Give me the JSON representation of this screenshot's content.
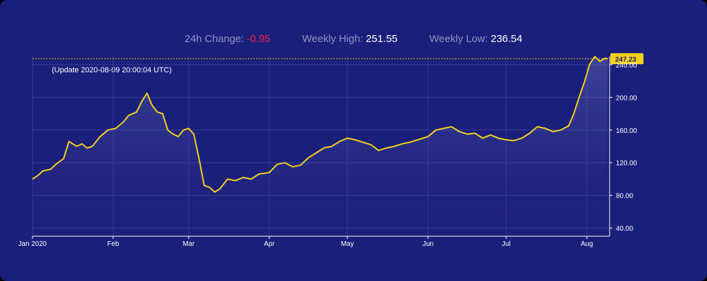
{
  "stats": {
    "change_label": "24h Change:",
    "change_value": "-0.95",
    "high_label": "Weekly High:",
    "high_value": "251.55",
    "low_label": "Weekly Low:",
    "low_value": "236.54"
  },
  "update_text": "(Update 2020-08-09 20:00:04 UTC)",
  "colors": {
    "background": "#1b1f7c",
    "line": "#f5d21a",
    "negative": "#f0263c"
  },
  "chart_data": {
    "type": "area",
    "x_tick_labels": [
      "Jan 2020",
      "Feb",
      "Mar",
      "Apr",
      "May",
      "Jun",
      "Jul",
      "Aug"
    ],
    "y_tick_labels": [
      "40.00",
      "80.00",
      "120.00",
      "160.00",
      "200.00",
      "240.00"
    ],
    "ylim": [
      30,
      250
    ],
    "current_price": 247.23,
    "current_price_label": "247.23",
    "grid": true,
    "x": [
      "2020-01-01",
      "2020-01-03",
      "2020-01-05",
      "2020-01-08",
      "2020-01-10",
      "2020-01-13",
      "2020-01-15",
      "2020-01-18",
      "2020-01-20",
      "2020-01-22",
      "2020-01-24",
      "2020-01-27",
      "2020-01-30",
      "2020-02-02",
      "2020-02-05",
      "2020-02-07",
      "2020-02-10",
      "2020-02-12",
      "2020-02-14",
      "2020-02-16",
      "2020-02-18",
      "2020-02-20",
      "2020-02-22",
      "2020-02-24",
      "2020-02-26",
      "2020-02-28",
      "2020-03-01",
      "2020-03-03",
      "2020-03-05",
      "2020-03-07",
      "2020-03-09",
      "2020-03-11",
      "2020-03-13",
      "2020-03-16",
      "2020-03-19",
      "2020-03-22",
      "2020-03-25",
      "2020-03-28",
      "2020-04-01",
      "2020-04-04",
      "2020-04-07",
      "2020-04-10",
      "2020-04-13",
      "2020-04-16",
      "2020-04-19",
      "2020-04-22",
      "2020-04-25",
      "2020-04-28",
      "2020-05-01",
      "2020-05-04",
      "2020-05-07",
      "2020-05-10",
      "2020-05-13",
      "2020-05-16",
      "2020-05-19",
      "2020-05-22",
      "2020-05-25",
      "2020-05-28",
      "2020-06-01",
      "2020-06-04",
      "2020-06-07",
      "2020-06-10",
      "2020-06-13",
      "2020-06-16",
      "2020-06-19",
      "2020-06-22",
      "2020-06-25",
      "2020-06-28",
      "2020-07-01",
      "2020-07-04",
      "2020-07-07",
      "2020-07-10",
      "2020-07-13",
      "2020-07-16",
      "2020-07-19",
      "2020-07-22",
      "2020-07-25",
      "2020-07-27",
      "2020-07-29",
      "2020-07-31",
      "2020-08-02",
      "2020-08-04",
      "2020-08-06",
      "2020-08-08",
      "2020-08-09"
    ],
    "y": [
      100,
      104,
      110,
      112,
      118,
      125,
      146,
      140,
      143,
      138,
      140,
      152,
      160,
      162,
      170,
      178,
      182,
      195,
      205,
      190,
      182,
      180,
      160,
      155,
      152,
      160,
      162,
      155,
      125,
      92,
      90,
      84,
      88,
      100,
      98,
      102,
      100,
      106,
      108,
      118,
      120,
      115,
      117,
      126,
      132,
      138,
      140,
      146,
      150,
      148,
      145,
      142,
      135,
      138,
      140,
      143,
      145,
      148,
      152,
      160,
      162,
      164,
      158,
      155,
      156,
      150,
      154,
      150,
      148,
      147,
      150,
      156,
      164,
      162,
      158,
      160,
      165,
      180,
      200,
      218,
      240,
      250,
      244,
      248,
      247
    ]
  }
}
